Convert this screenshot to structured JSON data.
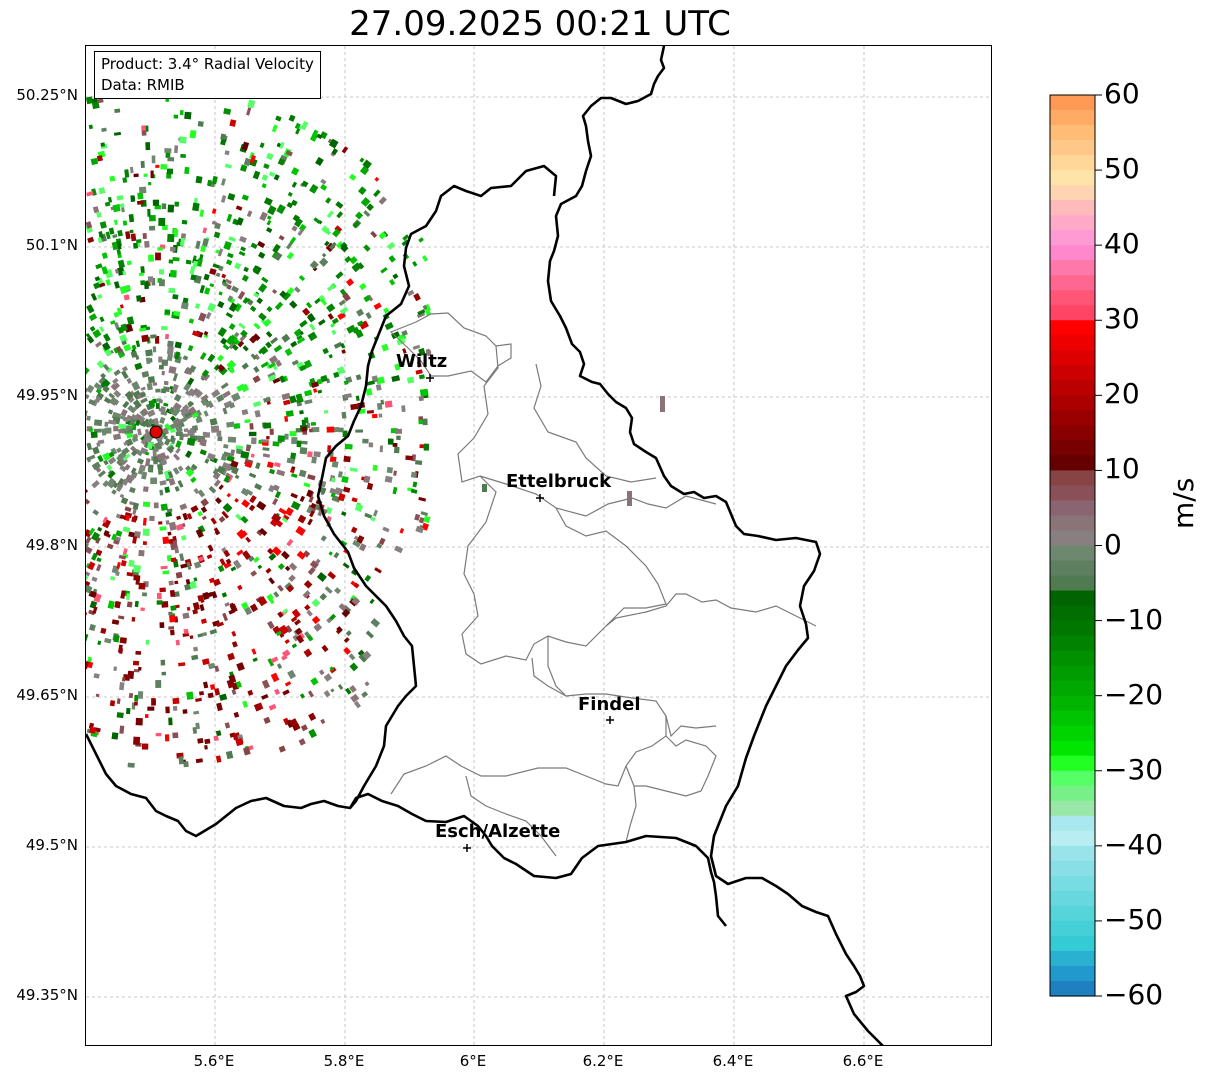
{
  "title": "27.09.2025 00:21 UTC",
  "info": {
    "product": "Product: 3.4° Radial Velocity",
    "data": "Data: RMIB"
  },
  "axes": {
    "y_ticks": [
      "50.25°N",
      "50.1°N",
      "49.95°N",
      "49.8°N",
      "49.65°N",
      "49.5°N",
      "49.35°N"
    ],
    "x_ticks": [
      "5.6°E",
      "5.8°E",
      "6°E",
      "6.2°E",
      "6.4°E",
      "6.6°E"
    ]
  },
  "cities": [
    {
      "name": "Wiltz"
    },
    {
      "name": "Ettelbruck"
    },
    {
      "name": "Findel"
    },
    {
      "name": "Esch/Alzette"
    }
  ],
  "radar": {
    "name": "radar-site",
    "color": "#e00000"
  },
  "colorbar": {
    "unit": "m/s",
    "min": -60,
    "max": 60,
    "ticks": [
      "60",
      "50",
      "40",
      "30",
      "20",
      "10",
      "0",
      "−10",
      "−20",
      "−30",
      "−40",
      "−50",
      "−60"
    ],
    "colors_top_to_bottom": [
      "#ff9a55",
      "#ffab66",
      "#ffbc77",
      "#ffc888",
      "#ffd799",
      "#ffe4aa",
      "#ffd4b0",
      "#ffbabc",
      "#ffaac8",
      "#ff9ad4",
      "#ff88cc",
      "#ff78aa",
      "#ff6690",
      "#ff5577",
      "#ff4466",
      "#ff0000",
      "#ee0000",
      "#dd0000",
      "#cc0000",
      "#bb0000",
      "#aa0000",
      "#990000",
      "#880000",
      "#770000",
      "#660000",
      "#884444",
      "#8a5058",
      "#8a6470",
      "#8a7478",
      "#888080",
      "#6e8870",
      "#5f8060",
      "#507a50",
      "#006400",
      "#006e00",
      "#007800",
      "#008400",
      "#009000",
      "#009c00",
      "#00a800",
      "#00b400",
      "#00c400",
      "#00d400",
      "#00e600",
      "#22ff22",
      "#55ff66",
      "#77f088",
      "#99e8a8",
      "#a8e8ee",
      "#b8eef2",
      "#99e4ea",
      "#88e0e6",
      "#77dde2",
      "#66d8de",
      "#55d4da",
      "#44d0d6",
      "#33ccd4",
      "#2ab0d0",
      "#2299cc",
      "#1f80c0"
    ]
  }
}
